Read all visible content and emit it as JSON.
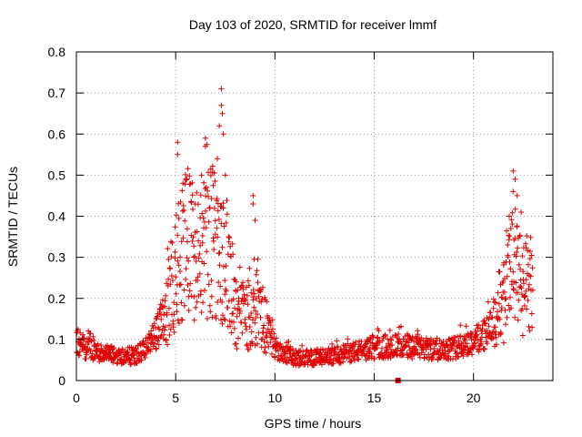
{
  "chart_data": {
    "type": "scatter",
    "title": "Day 103 of 2020, SRMTID for receiver lmmf",
    "xlabel": "GPS time / hours",
    "ylabel": "SRMTID / TECUs",
    "xlim": [
      0,
      24
    ],
    "ylim": [
      0,
      0.8
    ],
    "grid": true,
    "x_ticks": [
      0,
      5,
      10,
      15,
      20
    ],
    "x_tick_labels": [
      "0",
      "5",
      "10",
      "15",
      "20"
    ],
    "y_ticks": [
      0,
      0.1,
      0.2,
      0.3,
      0.4,
      0.5,
      0.6,
      0.7,
      0.8
    ],
    "y_tick_labels": [
      "0",
      "0.1",
      "0.2",
      "0.3",
      "0.4",
      "0.5",
      "0.6",
      "0.7",
      "0.8"
    ],
    "marker": "+",
    "marker_color": "#e00000",
    "series": [
      {
        "name": "SRMTID",
        "color": "#e00000",
        "envelope_description": "piecewise profile of typical values vs hour",
        "profile": [
          {
            "x": 0.0,
            "y": 0.09
          },
          {
            "x": 0.5,
            "y": 0.08
          },
          {
            "x": 1.0,
            "y": 0.07
          },
          {
            "x": 2.0,
            "y": 0.06
          },
          {
            "x": 3.0,
            "y": 0.06
          },
          {
            "x": 3.5,
            "y": 0.08
          },
          {
            "x": 4.0,
            "y": 0.11
          },
          {
            "x": 4.5,
            "y": 0.17
          },
          {
            "x": 5.0,
            "y": 0.27
          },
          {
            "x": 5.5,
            "y": 0.33
          },
          {
            "x": 6.0,
            "y": 0.3
          },
          {
            "x": 6.5,
            "y": 0.33
          },
          {
            "x": 7.0,
            "y": 0.34
          },
          {
            "x": 7.5,
            "y": 0.27
          },
          {
            "x": 8.0,
            "y": 0.17
          },
          {
            "x": 8.5,
            "y": 0.16
          },
          {
            "x": 9.0,
            "y": 0.18
          },
          {
            "x": 9.5,
            "y": 0.14
          },
          {
            "x": 10.0,
            "y": 0.08
          },
          {
            "x": 11.0,
            "y": 0.055
          },
          {
            "x": 12.0,
            "y": 0.055
          },
          {
            "x": 13.0,
            "y": 0.06
          },
          {
            "x": 14.0,
            "y": 0.07
          },
          {
            "x": 15.0,
            "y": 0.08
          },
          {
            "x": 16.0,
            "y": 0.085
          },
          {
            "x": 17.0,
            "y": 0.08
          },
          {
            "x": 18.0,
            "y": 0.075
          },
          {
            "x": 19.0,
            "y": 0.08
          },
          {
            "x": 20.0,
            "y": 0.095
          },
          {
            "x": 21.0,
            "y": 0.13
          },
          {
            "x": 21.5,
            "y": 0.2
          },
          {
            "x": 22.0,
            "y": 0.27
          },
          {
            "x": 22.5,
            "y": 0.22
          },
          {
            "x": 23.0,
            "y": 0.2
          }
        ],
        "peaks": [
          {
            "x": 7.3,
            "y": 0.71
          },
          {
            "x": 7.3,
            "y": 0.67
          },
          {
            "x": 7.35,
            "y": 0.65
          },
          {
            "x": 7.2,
            "y": 0.62
          },
          {
            "x": 6.5,
            "y": 0.59
          },
          {
            "x": 6.5,
            "y": 0.57
          },
          {
            "x": 5.1,
            "y": 0.58
          },
          {
            "x": 5.1,
            "y": 0.55
          },
          {
            "x": 7.4,
            "y": 0.6
          },
          {
            "x": 7.1,
            "y": 0.54
          },
          {
            "x": 7.5,
            "y": 0.5
          },
          {
            "x": 8.9,
            "y": 0.45
          },
          {
            "x": 8.9,
            "y": 0.43
          },
          {
            "x": 9.0,
            "y": 0.39
          },
          {
            "x": 5.5,
            "y": 0.49
          },
          {
            "x": 6.3,
            "y": 0.5
          },
          {
            "x": 22.0,
            "y": 0.51
          },
          {
            "x": 22.1,
            "y": 0.49
          },
          {
            "x": 22.0,
            "y": 0.46
          },
          {
            "x": 22.2,
            "y": 0.45
          },
          {
            "x": 21.8,
            "y": 0.4
          },
          {
            "x": 22.4,
            "y": 0.41
          },
          {
            "x": 16.2,
            "y": 0.0
          }
        ]
      }
    ],
    "point_count": 1500
  }
}
